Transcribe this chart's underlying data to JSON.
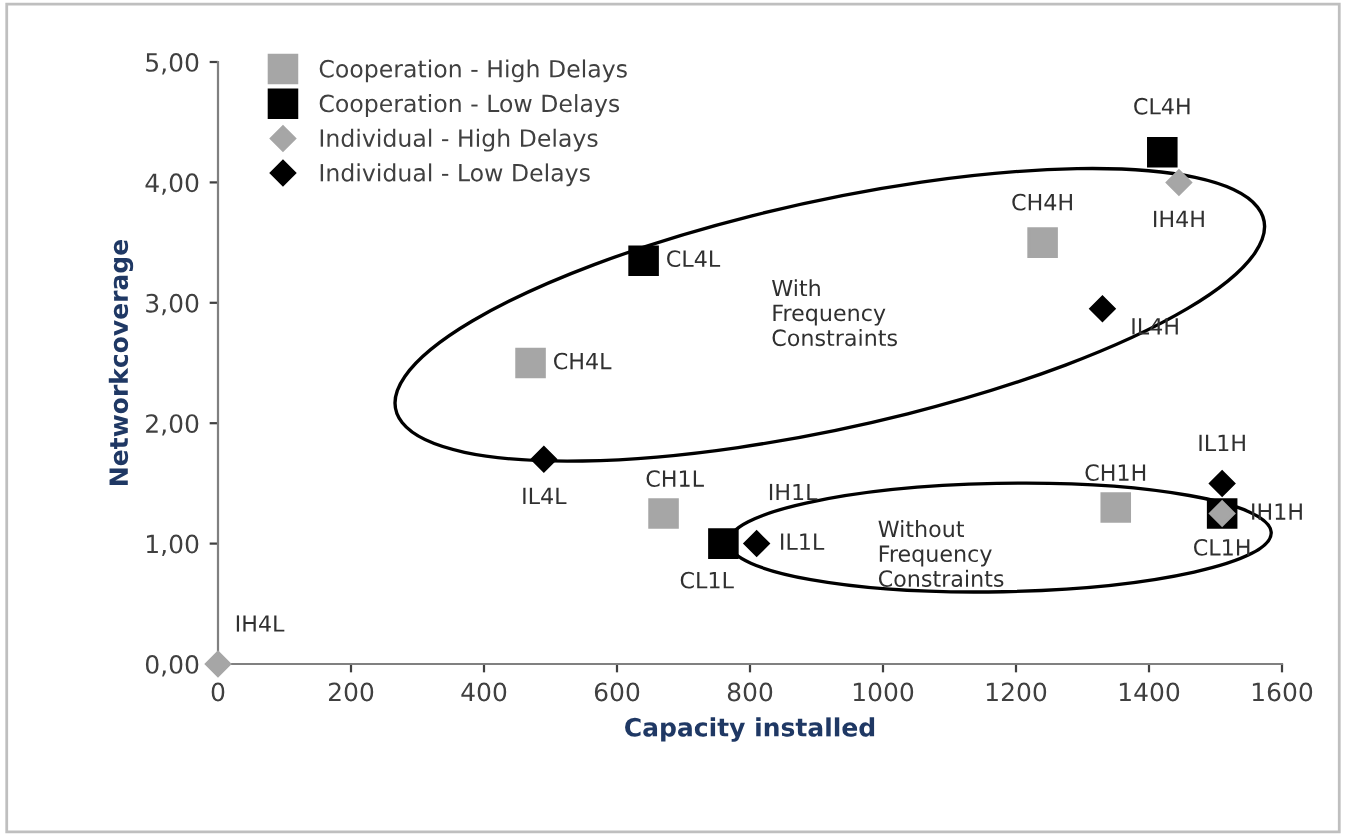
{
  "chart_data": {
    "type": "scatter",
    "xlabel": "Capacity installed",
    "ylabel": "Networkcoverage",
    "xlim": [
      0,
      1600
    ],
    "xticks": [
      0,
      200,
      400,
      600,
      800,
      1000,
      1200,
      1400,
      1600
    ],
    "ylim": [
      0,
      5
    ],
    "yticks": [
      {
        "value": 0,
        "label": "0,00"
      },
      {
        "value": 1,
        "label": "1,00"
      },
      {
        "value": 2,
        "label": "2,00"
      },
      {
        "value": 3,
        "label": "3,00"
      },
      {
        "value": 4,
        "label": "4,00"
      },
      {
        "value": 5,
        "label": "5,00"
      }
    ],
    "grid": false,
    "legend": "top left",
    "series": [
      {
        "name": "Cooperation - High Delays",
        "color": "#a6a6a6",
        "marker": "square",
        "x": [
          470,
          670,
          1240,
          1350
        ],
        "values": [
          2.5,
          1.25,
          3.5,
          1.3
        ]
      },
      {
        "name": "Cooperation - Low Delays",
        "color": "#000000",
        "marker": "square",
        "x": [
          640,
          760,
          1420,
          1510
        ],
        "values": [
          3.35,
          1.0,
          4.25,
          1.25
        ]
      },
      {
        "name": "Individual - High Delays",
        "color": "#a6a6a6",
        "marker": "diamond",
        "x": [
          0,
          810,
          1445,
          1510
        ],
        "values": [
          0,
          null,
          4.0,
          1.25
        ]
      },
      {
        "name": "Individual - Low Delays",
        "color": "#000000",
        "marker": "diamond",
        "x": [
          490,
          810,
          1330,
          1510
        ],
        "values": [
          1.7,
          1.0,
          2.95,
          1.5
        ]
      }
    ],
    "annotations": [
      {
        "text": "CH4L",
        "x": 470,
        "y": 2.5
      },
      {
        "text": "CH1L",
        "x": 670,
        "y": 1.25
      },
      {
        "text": "CH4H",
        "x": 1240,
        "y": 3.5
      },
      {
        "text": "CH1H",
        "x": 1350,
        "y": 1.3
      },
      {
        "text": "CL4L",
        "x": 640,
        "y": 3.35
      },
      {
        "text": "CL1L",
        "x": 760,
        "y": 1.0
      },
      {
        "text": "CL4H",
        "x": 1420,
        "y": 4.25
      },
      {
        "text": "CL1H",
        "x": 1510,
        "y": 1.25
      },
      {
        "text": "IH4L",
        "x": 0,
        "y": 0
      },
      {
        "text": "IH1L",
        "x": 810,
        "y": 1.0
      },
      {
        "text": "IH4H",
        "x": 1445,
        "y": 4.0
      },
      {
        "text": "IH1H",
        "x": 1510,
        "y": 1.25
      },
      {
        "text": "IL4L",
        "x": 490,
        "y": 1.7
      },
      {
        "text": "IL1L",
        "x": 810,
        "y": 1.0
      },
      {
        "text": "IL4H",
        "x": 1330,
        "y": 2.95
      },
      {
        "text": "IL1H",
        "x": 1510,
        "y": 1.5
      },
      "With\nFrequency\nConstraints",
      "Without\nFrequency\nConstraints"
    ]
  }
}
